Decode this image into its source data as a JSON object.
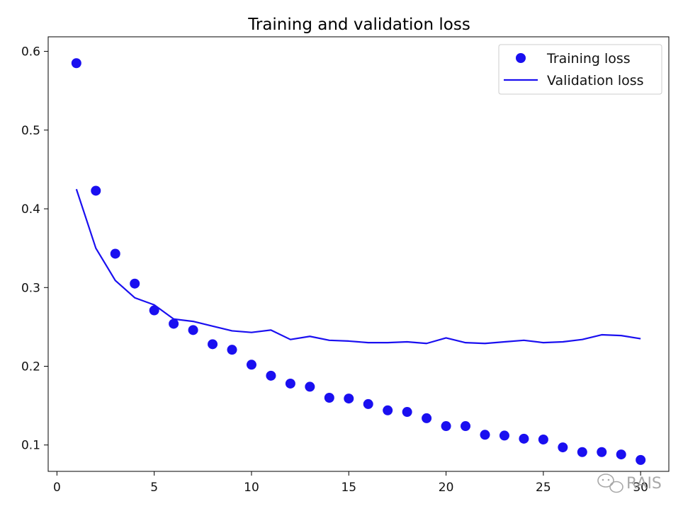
{
  "chart_data": {
    "type": "line",
    "title": "Training and validation loss",
    "xlabel": "",
    "ylabel": "",
    "xlim": [
      -0.45,
      31.45
    ],
    "ylim": [
      0.0665,
      0.6185
    ],
    "xticks": [
      0,
      5,
      10,
      15,
      20,
      25,
      30
    ],
    "yticks": [
      0.1,
      0.2,
      0.3,
      0.4,
      0.5,
      0.6
    ],
    "grid": false,
    "legend_position": "top-right",
    "x": [
      1,
      2,
      3,
      4,
      5,
      6,
      7,
      8,
      9,
      10,
      11,
      12,
      13,
      14,
      15,
      16,
      17,
      18,
      19,
      20,
      21,
      22,
      23,
      24,
      25,
      26,
      27,
      28,
      29,
      30
    ],
    "series": [
      {
        "name": "Training loss",
        "style": "markers",
        "color": "#1a0ff0",
        "values": [
          0.585,
          0.423,
          0.343,
          0.305,
          0.271,
          0.254,
          0.246,
          0.228,
          0.221,
          0.202,
          0.188,
          0.178,
          0.174,
          0.16,
          0.159,
          0.152,
          0.144,
          0.142,
          0.134,
          0.124,
          0.124,
          0.113,
          0.112,
          0.108,
          0.107,
          0.097,
          0.091,
          0.091,
          0.088,
          0.081
        ]
      },
      {
        "name": "Validation loss",
        "style": "line",
        "color": "#1a0ff0",
        "values": [
          0.425,
          0.35,
          0.309,
          0.287,
          0.278,
          0.26,
          0.257,
          0.251,
          0.245,
          0.243,
          0.246,
          0.234,
          0.238,
          0.233,
          0.232,
          0.23,
          0.23,
          0.231,
          0.229,
          0.236,
          0.23,
          0.229,
          0.231,
          0.233,
          0.23,
          0.231,
          0.234,
          0.24,
          0.239,
          0.235
        ]
      }
    ]
  },
  "watermark": {
    "text": "RAIS"
  }
}
